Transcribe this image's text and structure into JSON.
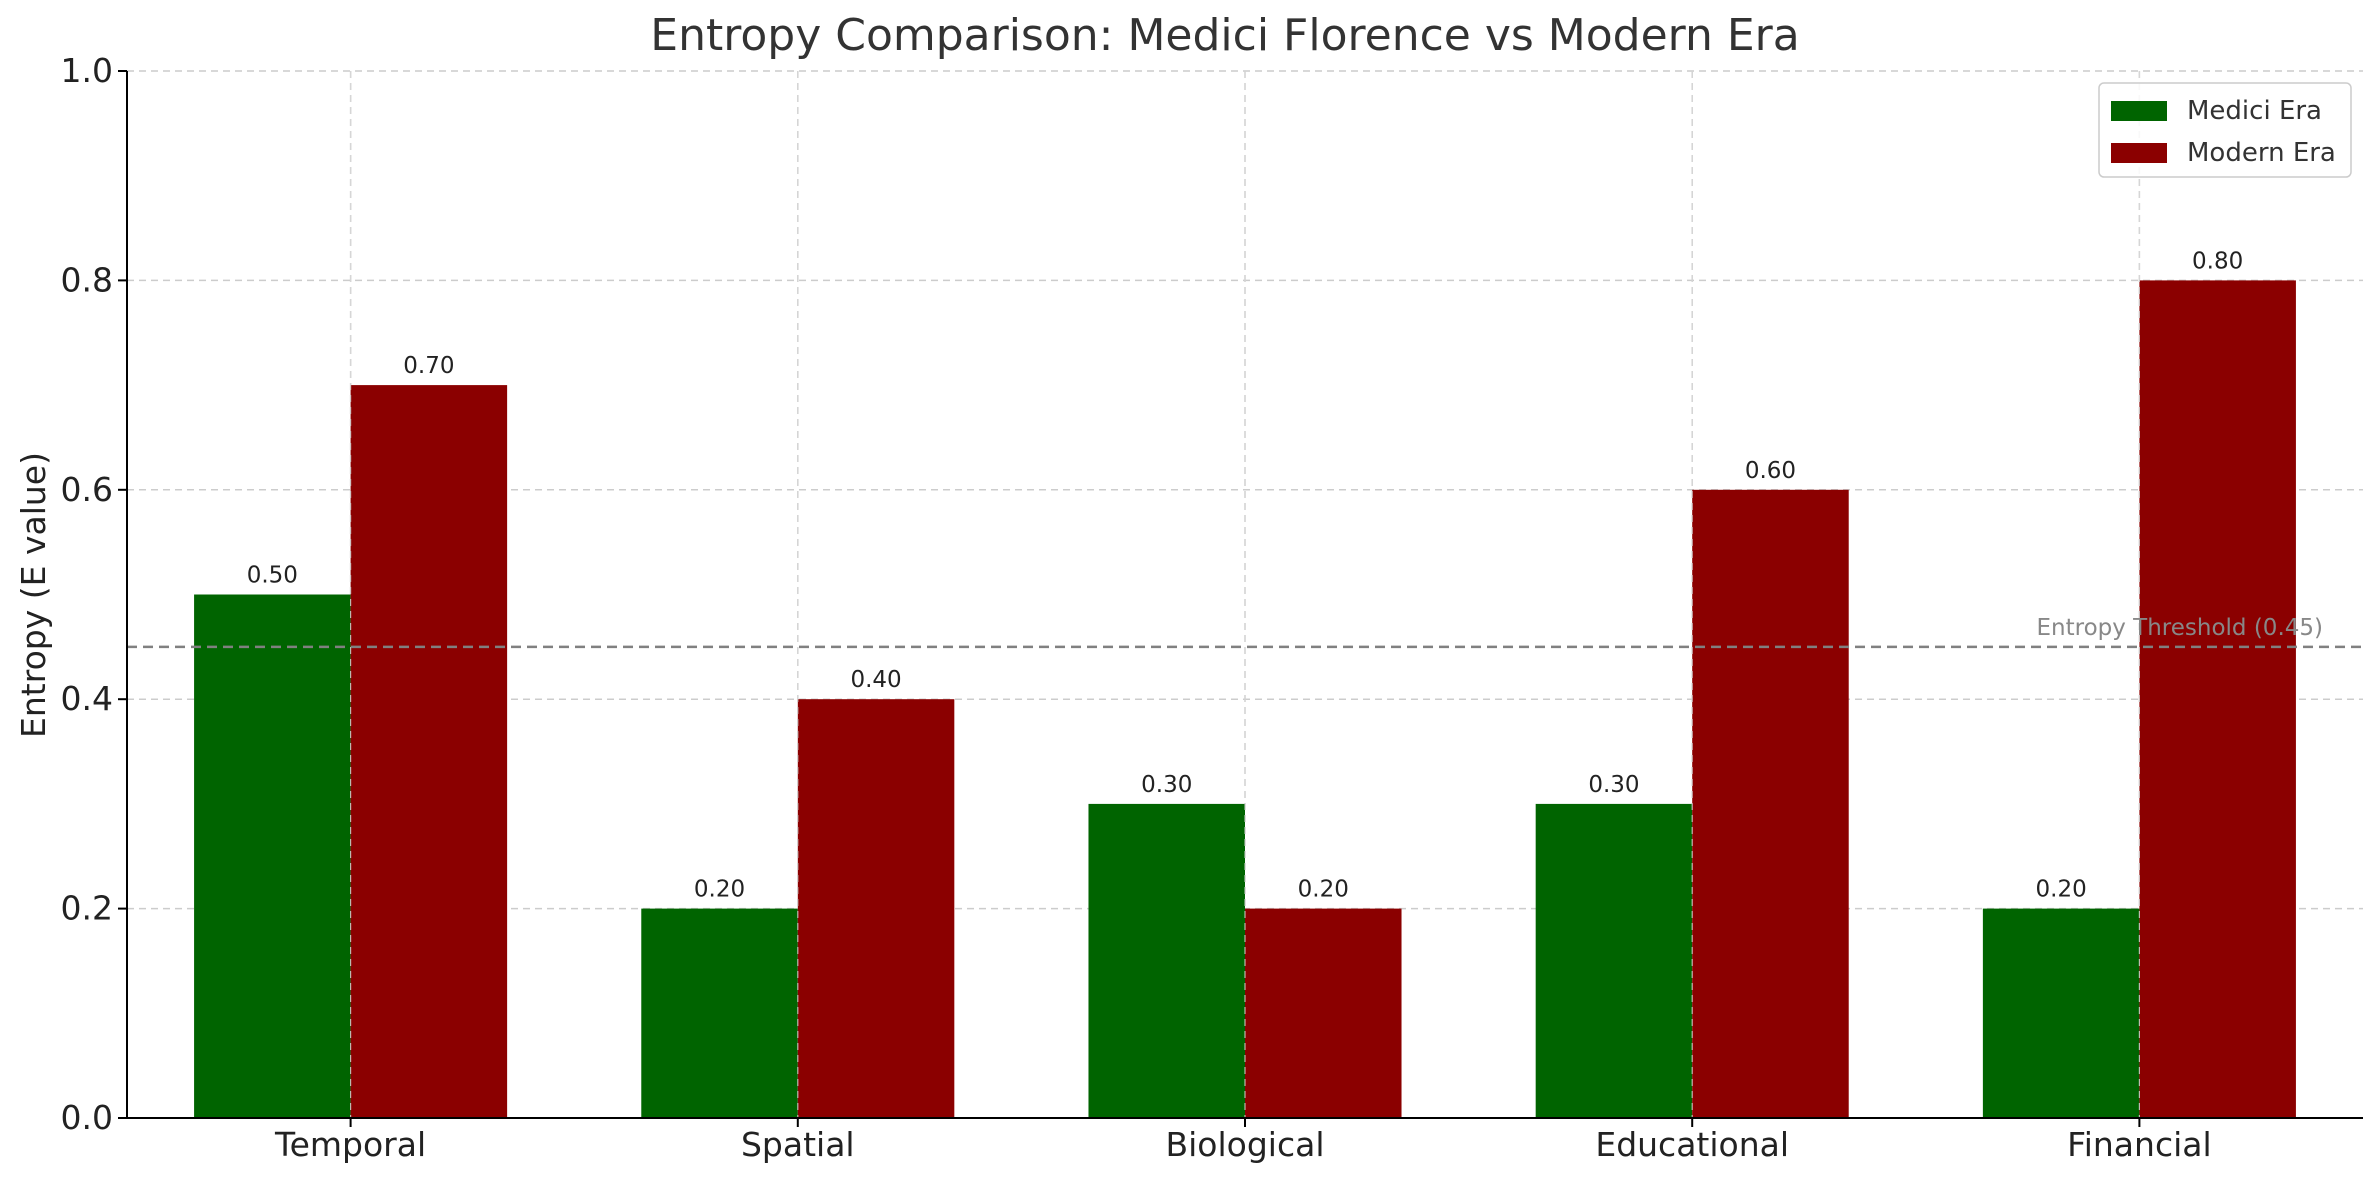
{
  "chart_data": {
    "type": "bar",
    "title": "Entropy Comparison: Medici Florence vs Modern Era",
    "xlabel": "",
    "ylabel": "Entropy (E value)",
    "categories": [
      "Temporal",
      "Spatial",
      "Biological",
      "Educational",
      "Financial"
    ],
    "series": [
      {
        "name": "Medici Era",
        "values": [
          0.5,
          0.2,
          0.3,
          0.3,
          0.2
        ],
        "labels": [
          "0.50",
          "0.20",
          "0.30",
          "0.30",
          "0.20"
        ],
        "color": "#006400"
      },
      {
        "name": "Modern Era",
        "values": [
          0.7,
          0.4,
          0.2,
          0.6,
          0.8
        ],
        "labels": [
          "0.70",
          "0.40",
          "0.20",
          "0.60",
          "0.80"
        ],
        "color": "#8b0000"
      }
    ],
    "ylim": [
      0,
      1
    ],
    "yticks": [
      0,
      0.2,
      0.4,
      0.6,
      0.8,
      1.0
    ],
    "ytick_labels": [
      "0.0",
      "0.2",
      "0.4",
      "0.6",
      "0.8",
      "1.0"
    ],
    "threshold": {
      "value": 0.45,
      "label": "Entropy Threshold (0.45)",
      "color": "#808080"
    },
    "grid": true,
    "legend_position": "top-right"
  }
}
